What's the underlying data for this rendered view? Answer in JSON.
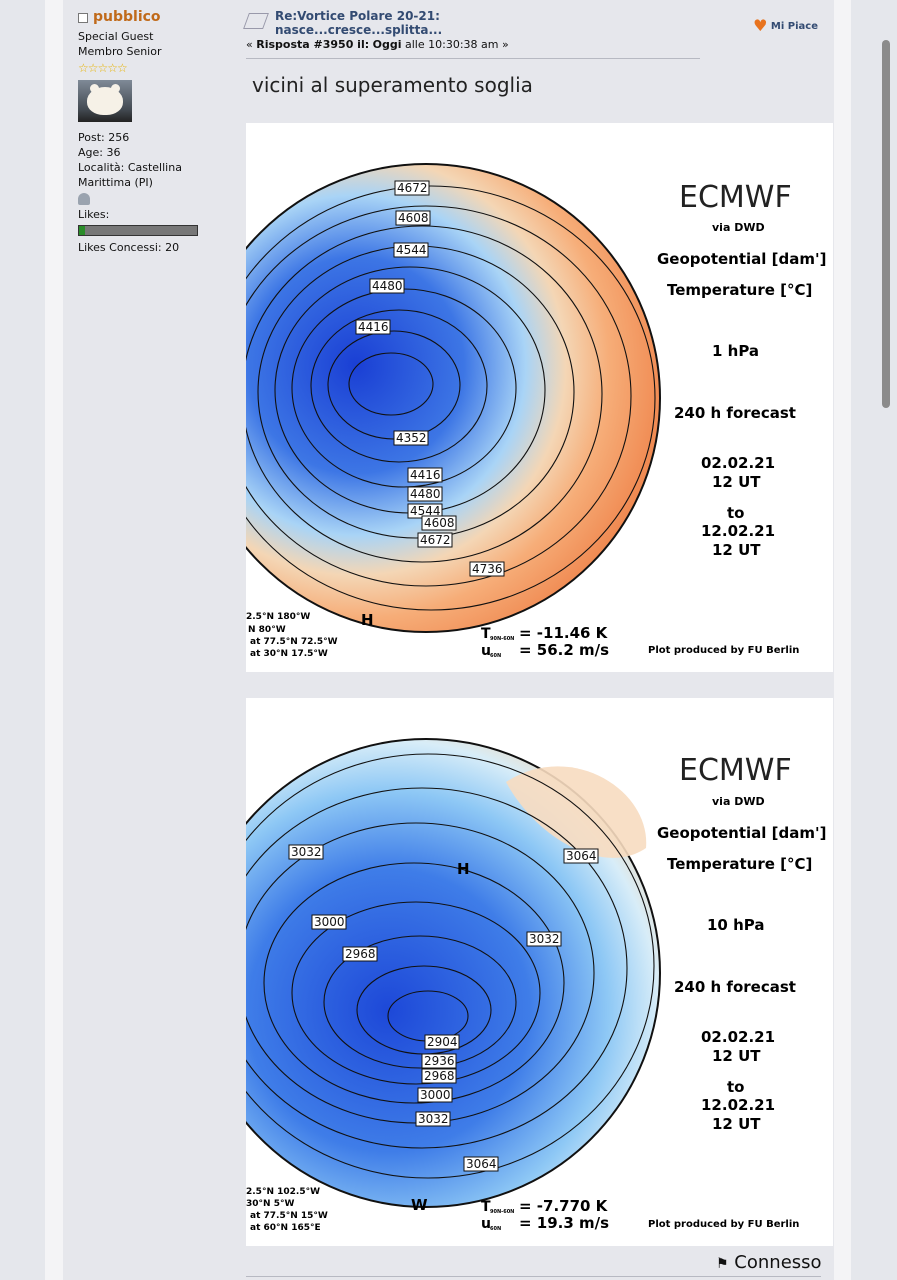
{
  "user": {
    "name": "pubblico",
    "title": "Special Guest",
    "rank": "Membro Senior",
    "stars": "☆☆☆☆☆",
    "posts": "Post: 256",
    "age": "Age: 36",
    "location": "Località: Castellina Marittima (PI)",
    "likes_label": "Likes:",
    "likes_level": 0.05,
    "likes_given": "Likes Concessi: 20"
  },
  "post": {
    "title": "Re:Vortice Polare 20-21: nasce...cresce...splitta...",
    "reply_prefix": "« ",
    "reply_label": "Risposta #3950 il:",
    "date_day": "Oggi",
    "date_rest": " alle 10:30:38 am »",
    "like_label": "Mi Piace",
    "body": "vicini al superamento soglia"
  },
  "charts": [
    {
      "brand": "ECMWF",
      "source": "via DWD",
      "param1": "Geopotential [dam']",
      "param2": "Temperature [°C]",
      "level": "1 hPa",
      "forecast": "240 h forecast",
      "from": "02.02.21",
      "from_time": "12 UT",
      "to_word": "to",
      "to": "12.02.21",
      "to_time": "12 UT",
      "contour_labels": [
        "4672",
        "4608",
        "4544",
        "4480",
        "4416",
        "4352",
        "4416",
        "4480",
        "4544",
        "4608",
        "4672",
        "4736"
      ],
      "info_lines": [
        "2.5°N 180°W",
        "N 80°W",
        "at 77.5°N 72.5°W",
        "at 30°N 17.5°W"
      ],
      "temp": "= -11.46 K",
      "wind": "= 56.2 m/s",
      "temp_symbol": "T",
      "temp_sub": "90N-60N",
      "wind_symbol": "u",
      "wind_sub": "60N",
      "credit": "Plot produced by FU Berlin",
      "symbol_h": "H"
    },
    {
      "brand": "ECMWF",
      "source": "via DWD",
      "param1": "Geopotential [dam']",
      "param2": "Temperature [°C]",
      "level": "10 hPa",
      "forecast": "240 h forecast",
      "from": "02.02.21",
      "from_time": "12 UT",
      "to_word": "to",
      "to": "12.02.21",
      "to_time": "12 UT",
      "contour_labels": [
        "3032",
        "3064",
        "3000",
        "3032",
        "2968",
        "2904",
        "2936",
        "2968",
        "3000",
        "3032",
        "3064"
      ],
      "info_lines": [
        "2.5°N 102.5°W",
        "30°N 5°W",
        "at 77.5°N 15°W",
        "at 60°N 165°E"
      ],
      "temp": "= -7.770 K",
      "wind": "= 19.3 m/s",
      "temp_symbol": "T",
      "temp_sub": "90N-60N",
      "wind_symbol": "u",
      "wind_sub": "60N",
      "credit": "Plot produced by FU Berlin",
      "symbol_h": "H",
      "symbol_w": "W"
    }
  ],
  "status": {
    "connected": "Connesso",
    "icon": "connected-user-icon"
  },
  "colors": {
    "username": "#c06a1a",
    "title": "#334b72",
    "heart": "#e8731e"
  }
}
